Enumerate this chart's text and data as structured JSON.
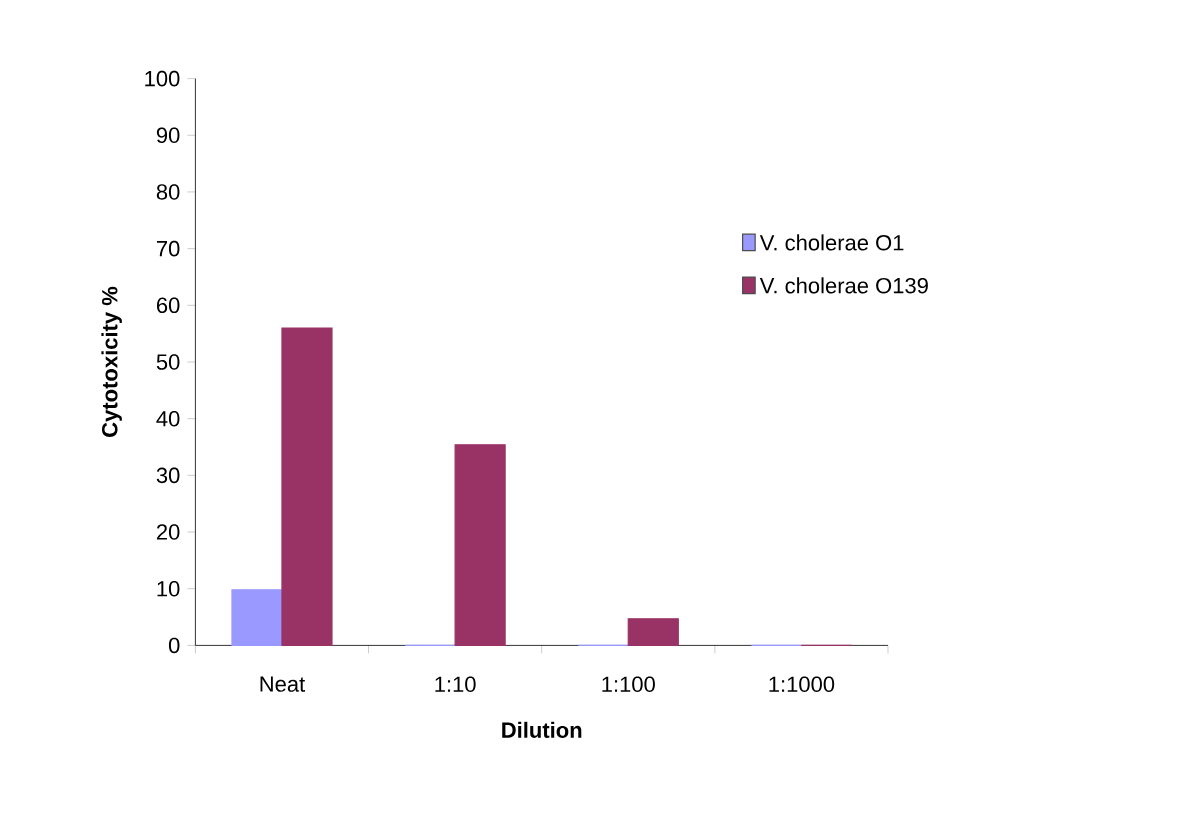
{
  "chart_data": {
    "type": "bar",
    "xlabel": "Dilution",
    "ylabel": "Cytotoxicity %",
    "categories": [
      "Neat",
      "1:10",
      "1:100",
      "1:1000"
    ],
    "series": [
      {
        "name": "V. cholerae O1",
        "color": "#9999ff",
        "values": [
          9.8,
          0,
          0,
          0
        ]
      },
      {
        "name": "V. cholerae O139",
        "color": "#993366",
        "values": [
          56,
          35.4,
          4.7,
          0
        ]
      }
    ],
    "ylim": [
      0,
      100
    ],
    "yticks": [
      0,
      10,
      20,
      30,
      40,
      50,
      60,
      70,
      80,
      90,
      100
    ],
    "legend": "right"
  }
}
